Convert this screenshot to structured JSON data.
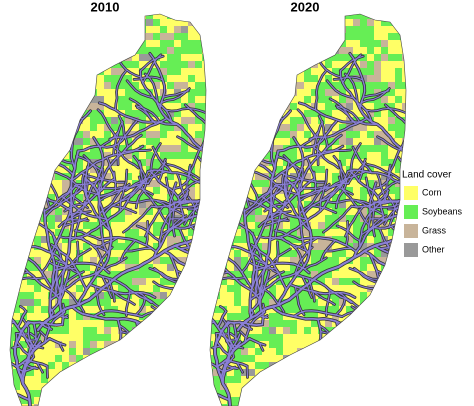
{
  "panels": [
    {
      "title": "2010"
    },
    {
      "title": "2020"
    }
  ],
  "legend": {
    "title": "Land cover",
    "items": [
      {
        "label": "Corn",
        "color": "#ffff66"
      },
      {
        "label": "Soybeans",
        "color": "#66ee55"
      },
      {
        "label": "Grass",
        "color": "#c8b49a"
      },
      {
        "label": "Other",
        "color": "#999999"
      }
    ]
  }
}
